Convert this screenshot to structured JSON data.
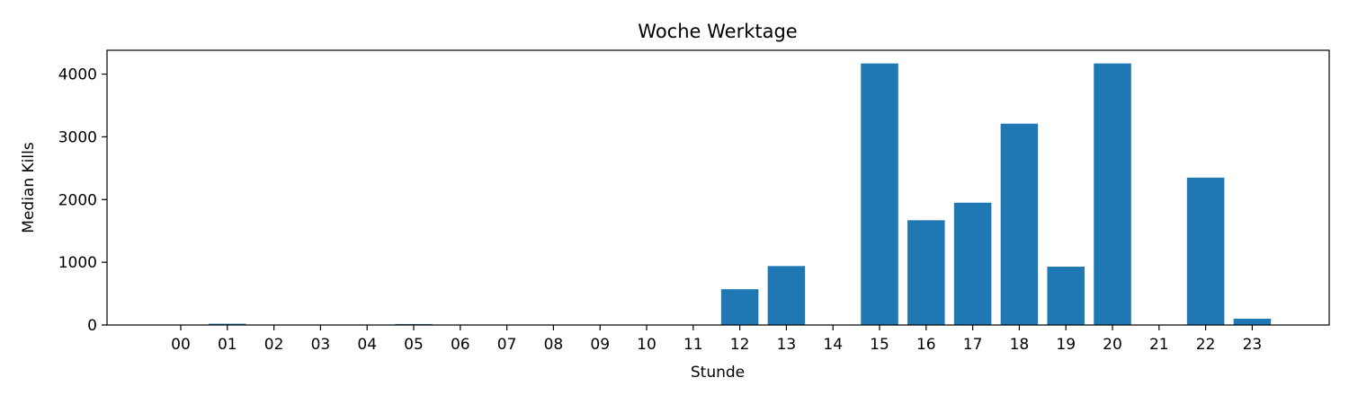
{
  "chart_data": {
    "type": "bar",
    "title": "Woche Werktage",
    "xlabel": "Stunde",
    "ylabel": "Median Kills",
    "categories": [
      "00",
      "01",
      "02",
      "03",
      "04",
      "05",
      "06",
      "07",
      "08",
      "09",
      "10",
      "11",
      "12",
      "13",
      "14",
      "15",
      "16",
      "17",
      "18",
      "19",
      "20",
      "21",
      "22",
      "23"
    ],
    "values": [
      0,
      20,
      0,
      0,
      0,
      15,
      0,
      0,
      0,
      0,
      0,
      5,
      570,
      940,
      0,
      4170,
      1670,
      1950,
      3210,
      930,
      4170,
      0,
      2350,
      100
    ],
    "ylim": [
      0,
      4380
    ],
    "yticks": [
      0,
      1000,
      2000,
      3000,
      4000
    ],
    "grid": false,
    "bar_color": "#1f77b4"
  }
}
